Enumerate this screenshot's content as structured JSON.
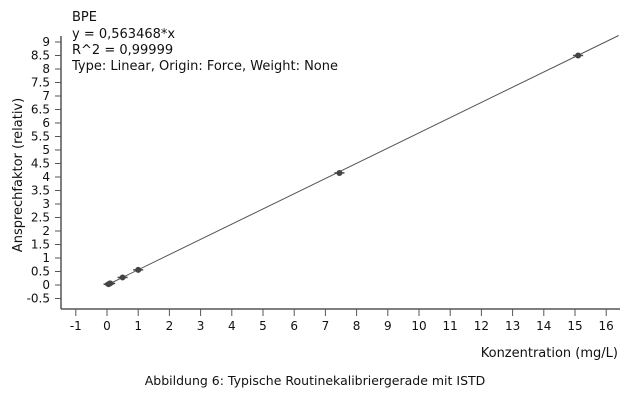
{
  "chart_data": {
    "type": "scatter",
    "title": "BPE",
    "annotations": [
      "y = 0,563468*x",
      "R^2 = 0,99999",
      "Type: Linear, Origin: Force, Weight: None"
    ],
    "xlabel": "Konzentration (mg/L)",
    "ylabel": "Ansprechfaktor (relativ)",
    "xlim": [
      -1.5,
      16.5
    ],
    "ylim": [
      -0.9,
      9.2
    ],
    "xticks": [
      "-1",
      "0",
      "1",
      "2",
      "3",
      "4",
      "5",
      "6",
      "7",
      "8",
      "9",
      "10",
      "11",
      "12",
      "13",
      "14",
      "15",
      "16"
    ],
    "yticks": [
      "9",
      "8.5",
      "8",
      "7.5",
      "7",
      "6.5",
      "6",
      "5.5",
      "5",
      "4.5",
      "4",
      "3.5",
      "3",
      "2.5",
      "2",
      "1.5",
      "1",
      "0.5",
      "0",
      "-0.5"
    ],
    "grid": false,
    "fit": {
      "slope": 0.563468,
      "intercept": 0
    },
    "points": [
      {
        "x": 0.05,
        "y": 0.03
      },
      {
        "x": 0.1,
        "y": 0.06
      },
      {
        "x": 0.5,
        "y": 0.28
      },
      {
        "x": 1.0,
        "y": 0.56
      },
      {
        "x": 7.45,
        "y": 4.15
      },
      {
        "x": 15.1,
        "y": 8.5
      }
    ],
    "colors": {
      "line": "#555555",
      "point": "#444444"
    }
  },
  "caption": "Abbildung 6: Typische Routinekalibriergerade mit ISTD"
}
